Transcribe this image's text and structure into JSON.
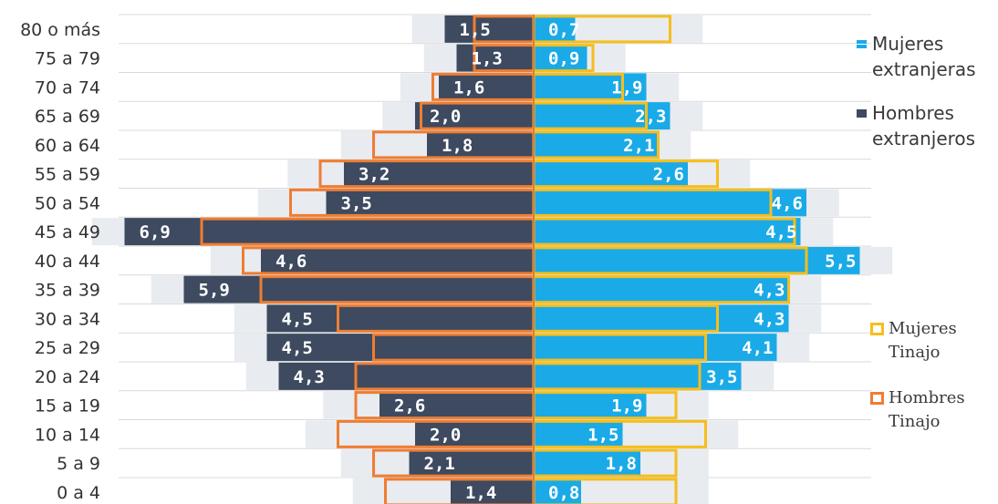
{
  "chart_data": {
    "type": "bar",
    "orientation": "horizontal-population-pyramid",
    "categories": [
      "80 o más",
      "75 a 79",
      "70 a 74",
      "65 a 69",
      "60 a 64",
      "55 a 59",
      "50 a 54",
      "45 a 49",
      "40 a 44",
      "35 a 39",
      "30 a 34",
      "25 a 29",
      "20 a 24",
      "15 a 19",
      "10 a 14",
      "5 a 9",
      "0 a 4"
    ],
    "series": [
      {
        "name": "Mujeres\nextranjeras",
        "side": "right",
        "style": "filled",
        "values": [
          0.7,
          0.9,
          1.9,
          2.3,
          2.1,
          2.6,
          4.6,
          4.5,
          5.5,
          4.3,
          4.3,
          4.1,
          3.5,
          1.9,
          1.5,
          1.8,
          0.8
        ],
        "labels": [
          "0,7",
          "0,9",
          "1,9",
          "2,3",
          "2,1",
          "2,6",
          "4,6",
          "4,5",
          "5,5",
          "4,3",
          "4,3",
          "4,1",
          "3,5",
          "1,9",
          "1,5",
          "1,8",
          "0,8"
        ]
      },
      {
        "name": "Hombres\nextranjeros",
        "side": "left",
        "style": "filled",
        "values": [
          1.5,
          1.3,
          1.6,
          2.0,
          1.8,
          3.2,
          3.5,
          6.9,
          4.6,
          5.9,
          4.5,
          4.5,
          4.3,
          2.6,
          2.0,
          2.1,
          1.4
        ],
        "labels": [
          "1,5",
          "1,3",
          "1,6",
          "2,0",
          "1,8",
          "3,2",
          "3,5",
          "6,9",
          "4,6",
          "5,9",
          "4,5",
          "4,5",
          "4,3",
          "2,6",
          "2,0",
          "2,1",
          "1,4"
        ]
      },
      {
        "name": "Mujeres\nTinajo",
        "side": "right",
        "style": "outline",
        "values": [
          2.3,
          1.0,
          1.5,
          1.9,
          2.1,
          3.1,
          4.0,
          4.4,
          4.6,
          4.3,
          3.1,
          2.9,
          2.8,
          2.4,
          2.9,
          2.4,
          2.4
        ]
      },
      {
        "name": "Hombres\nTinajo",
        "side": "left",
        "style": "outline",
        "values": [
          1.0,
          1.0,
          1.7,
          1.9,
          2.7,
          3.6,
          4.1,
          5.6,
          4.9,
          4.6,
          3.3,
          2.7,
          3.0,
          3.0,
          3.3,
          2.7,
          2.5
        ]
      }
    ],
    "colors": {
      "mujeres_extranjeras": "#1aaae7",
      "hombres_extranjeros": "#3d4a60",
      "mujeres_tinajo": "#f5be1c",
      "hombres_tinajo": "#ef7d32",
      "shadow": "#e8ebf0",
      "grid": "#d9d9d9",
      "tick_text": "#333333",
      "axis": "#e07a3c"
    },
    "xlim": [
      -6.9,
      5.5
    ],
    "grid": true,
    "legend_position": "right"
  }
}
